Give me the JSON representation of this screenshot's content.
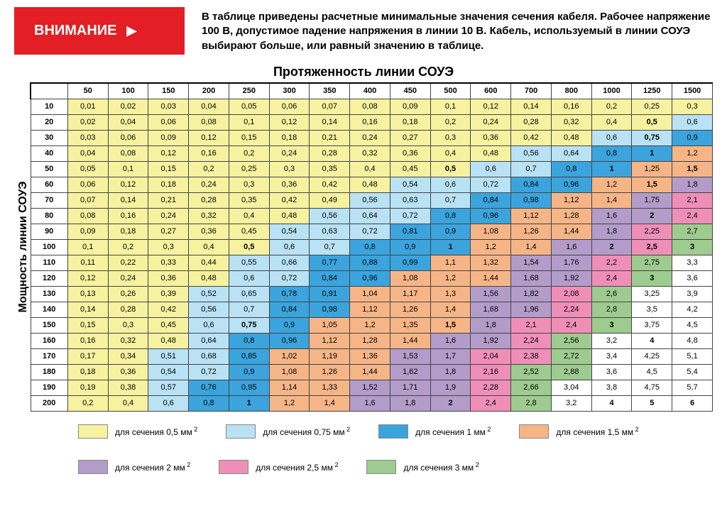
{
  "alert_label": "ВНИМАНИЕ",
  "description": "В таблице приведены расчетные минимальные значения сечения кабеля. Рабочее напряжение 100 В, допустимое падение напряжения в линии 10 В. Кабель, используемый в линии СОУЭ выбирают больше, или равный значению в таблице.",
  "x_title": "Протяженность линии СОУЭ",
  "y_title": "Мощность линии СОУЭ",
  "columns": [
    "50",
    "100",
    "150",
    "200",
    "250",
    "300",
    "350",
    "400",
    "450",
    "500",
    "600",
    "700",
    "800",
    "1000",
    "1250",
    "1500"
  ],
  "row_labels": [
    "10",
    "20",
    "30",
    "40",
    "50",
    "60",
    "70",
    "80",
    "90",
    "100",
    "110",
    "120",
    "130",
    "140",
    "150",
    "160",
    "170",
    "180",
    "190",
    "200"
  ],
  "colors": {
    "c05": "#f7f2a0",
    "c075": "#b9e2f4",
    "c1": "#3ba4dd",
    "c15": "#f5b587",
    "c2": "#b39cc9",
    "c25": "#ef8fb8",
    "c3": "#9ecb8f"
  },
  "thresholds": [
    {
      "max": 0.5,
      "color": "c05",
      "bold_at": "0,5"
    },
    {
      "max": 0.75,
      "color": "c075",
      "bold_at": "0,75"
    },
    {
      "max": 1.0,
      "color": "c1",
      "bold_at": "1"
    },
    {
      "max": 1.5,
      "color": "c15",
      "bold_at": "1,5"
    },
    {
      "max": 2.0,
      "color": "c2",
      "bold_at": "2"
    },
    {
      "max": 2.5,
      "color": "c25",
      "bold_at": "2,5"
    },
    {
      "max": 3.0,
      "color": "c3",
      "bold_at": "3"
    }
  ],
  "over_bold": [
    "4",
    "5",
    "6"
  ],
  "cells": [
    [
      "0,01",
      "0,02",
      "0,03",
      "0,04",
      "0,05",
      "0,06",
      "0,07",
      "0,08",
      "0,09",
      "0,1",
      "0,12",
      "0,14",
      "0,16",
      "0,2",
      "0,25",
      "0,3"
    ],
    [
      "0,02",
      "0,04",
      "0,06",
      "0,08",
      "0,1",
      "0,12",
      "0,14",
      "0,16",
      "0,18",
      "0,2",
      "0,24",
      "0,28",
      "0,32",
      "0,4",
      "0,5",
      "0,6"
    ],
    [
      "0,03",
      "0,06",
      "0,09",
      "0,12",
      "0,15",
      "0,18",
      "0,21",
      "0,24",
      "0,27",
      "0,3",
      "0,36",
      "0,42",
      "0,48",
      "0,6",
      "0,75",
      "0,9"
    ],
    [
      "0,04",
      "0,08",
      "0,12",
      "0,16",
      "0,2",
      "0,24",
      "0,28",
      "0,32",
      "0,36",
      "0,4",
      "0,48",
      "0,56",
      "0,64",
      "0,8",
      "1",
      "1,2"
    ],
    [
      "0,05",
      "0,1",
      "0,15",
      "0,2",
      "0,25",
      "0,3",
      "0,35",
      "0,4",
      "0,45",
      "0,5",
      "0,6",
      "0,7",
      "0,8",
      "1",
      "1,25",
      "1,5"
    ],
    [
      "0,06",
      "0,12",
      "0,18",
      "0,24",
      "0,3",
      "0,36",
      "0,42",
      "0,48",
      "0,54",
      "0,6",
      "0,72",
      "0,84",
      "0,96",
      "1,2",
      "1,5",
      "1,8"
    ],
    [
      "0,07",
      "0,14",
      "0,21",
      "0,28",
      "0,35",
      "0,42",
      "0,49",
      "0,56",
      "0,63",
      "0,7",
      "0,84",
      "0,98",
      "1,12",
      "1,4",
      "1,75",
      "2,1"
    ],
    [
      "0,08",
      "0,16",
      "0,24",
      "0,32",
      "0,4",
      "0,48",
      "0,56",
      "0,64",
      "0,72",
      "0,8",
      "0,96",
      "1,12",
      "1,28",
      "1,6",
      "2",
      "2,4"
    ],
    [
      "0,09",
      "0,18",
      "0,27",
      "0,36",
      "0,45",
      "0,54",
      "0,63",
      "0,72",
      "0,81",
      "0,9",
      "1,08",
      "1,26",
      "1,44",
      "1,8",
      "2,25",
      "2,7"
    ],
    [
      "0,1",
      "0,2",
      "0,3",
      "0,4",
      "0,5",
      "0,6",
      "0,7",
      "0,8",
      "0,9",
      "1",
      "1,2",
      "1,4",
      "1,6",
      "2",
      "2,5",
      "3"
    ],
    [
      "0,11",
      "0,22",
      "0,33",
      "0,44",
      "0,55",
      "0,66",
      "0,77",
      "0,88",
      "0,99",
      "1,1",
      "1,32",
      "1,54",
      "1,76",
      "2,2",
      "2,75",
      "3,3"
    ],
    [
      "0,12",
      "0,24",
      "0,36",
      "0,48",
      "0,6",
      "0,72",
      "0,84",
      "0,96",
      "1,08",
      "1,2",
      "1,44",
      "1,68",
      "1,92",
      "2,4",
      "3",
      "3,6"
    ],
    [
      "0,13",
      "0,26",
      "0,39",
      "0,52",
      "0,65",
      "0,78",
      "0,91",
      "1,04",
      "1,17",
      "1,3",
      "1,56",
      "1,82",
      "2,08",
      "2,6",
      "3,25",
      "3,9"
    ],
    [
      "0,14",
      "0,28",
      "0,42",
      "0,56",
      "0,7",
      "0,84",
      "0,98",
      "1,12",
      "1,26",
      "1,4",
      "1,68",
      "1,96",
      "2,24",
      "2,8",
      "3,5",
      "4,2"
    ],
    [
      "0,15",
      "0,3",
      "0,45",
      "0,6",
      "0,75",
      "0,9",
      "1,05",
      "1,2",
      "1,35",
      "1,5",
      "1,8",
      "2,1",
      "2,4",
      "3",
      "3,75",
      "4,5"
    ],
    [
      "0,16",
      "0,32",
      "0,48",
      "0,64",
      "0,8",
      "0,96",
      "1,12",
      "1,28",
      "1,44",
      "1,6",
      "1,92",
      "2,24",
      "2,56",
      "3,2",
      "4",
      "4,8"
    ],
    [
      "0,17",
      "0,34",
      "0,51",
      "0,68",
      "0,85",
      "1,02",
      "1,19",
      "1,36",
      "1,53",
      "1,7",
      "2,04",
      "2,38",
      "2,72",
      "3,4",
      "4,25",
      "5,1"
    ],
    [
      "0,18",
      "0,36",
      "0,54",
      "0,72",
      "0,9",
      "1,08",
      "1,26",
      "1,44",
      "1,62",
      "1,8",
      "2,16",
      "2,52",
      "2,88",
      "3,6",
      "4,5",
      "5,4"
    ],
    [
      "0,19",
      "0,38",
      "0,57",
      "0,76",
      "0,95",
      "1,14",
      "1,33",
      "1,52",
      "1,71",
      "1,9",
      "2,28",
      "2,66",
      "3,04",
      "3,8",
      "4,75",
      "5,7"
    ],
    [
      "0,2",
      "0,4",
      "0,6",
      "0,8",
      "1",
      "1,2",
      "1,4",
      "1,6",
      "1,8",
      "2",
      "2,4",
      "2,8",
      "3,2",
      "4",
      "5",
      "6"
    ]
  ],
  "legend": [
    {
      "color": "c05",
      "label": "для сечения 0,5 мм"
    },
    {
      "color": "c075",
      "label": "для сечения 0,75 мм"
    },
    {
      "color": "c1",
      "label": "для сечения 1 мм"
    },
    {
      "color": "c15",
      "label": "для сечения 1,5 мм"
    },
    {
      "color": "c2",
      "label": "для сечения 2 мм"
    },
    {
      "color": "c25",
      "label": "для сечения 2,5 мм"
    },
    {
      "color": "c3",
      "label": "для сечения 3 мм"
    }
  ]
}
